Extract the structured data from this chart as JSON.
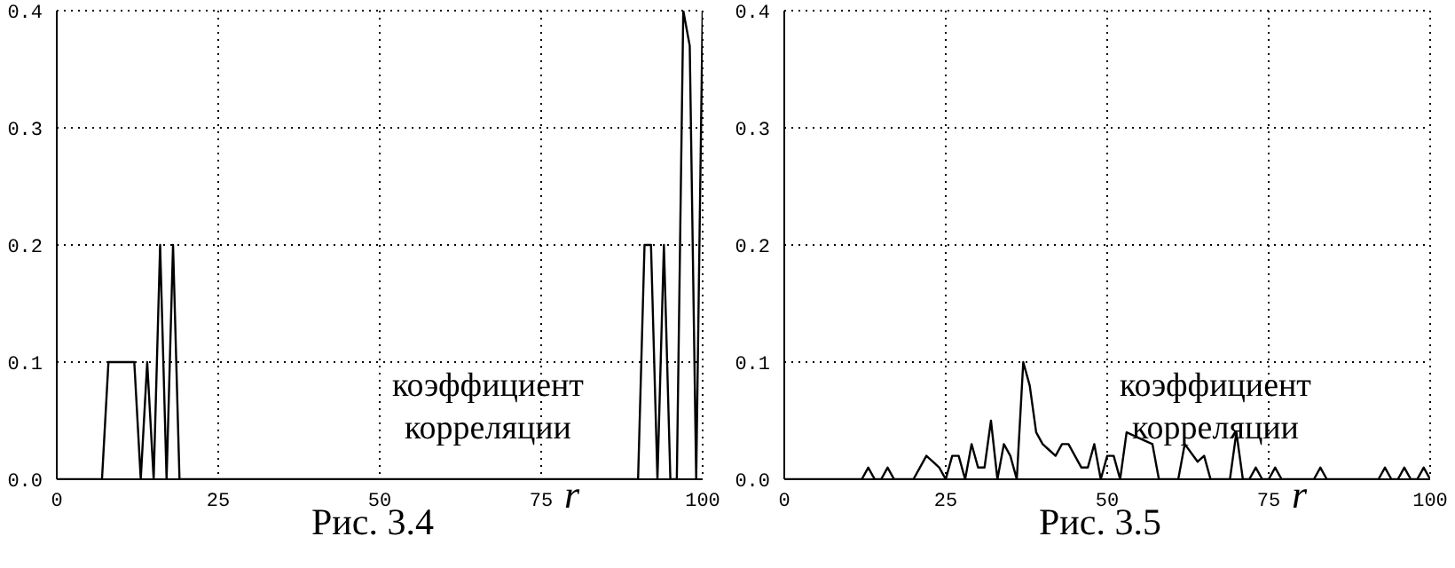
{
  "chart_data": [
    {
      "type": "line",
      "xlabel": "r",
      "annotations": [
        "коэффициент корреляции",
        "Рис. 3.4"
      ],
      "xlim": [
        0,
        100
      ],
      "xticks": [
        0,
        25,
        50,
        75,
        100
      ],
      "ylim": [
        0,
        0.4
      ],
      "yticks": [
        {
          "value": 0,
          "label": "0.0"
        },
        {
          "value": 0.1,
          "label": "0.1"
        },
        {
          "value": 0.2,
          "label": "0.2"
        },
        {
          "value": 0.3,
          "label": "0.3"
        },
        {
          "value": 0.4,
          "label": "0.4"
        }
      ],
      "grid": true,
      "legend": false,
      "marker": "none",
      "line_style": "solid",
      "series": [
        {
          "color": "#000000",
          "x": [
            0,
            7,
            8,
            12,
            13,
            14,
            15,
            16,
            17,
            18,
            19,
            90,
            91,
            92,
            93,
            94,
            95,
            96,
            97,
            98,
            99,
            100
          ],
          "values": [
            0,
            0,
            0.1,
            0.1,
            0,
            0.1,
            0,
            0.2,
            0,
            0.2,
            0,
            0,
            0.2,
            0.2,
            0,
            0.2,
            0,
            0,
            0.4,
            0.37,
            0,
            0.4
          ]
        }
      ]
    },
    {
      "type": "line",
      "xlabel": "r",
      "annotations": [
        "коэффициент корреляции",
        "Рис. 3.5"
      ],
      "xlim": [
        0,
        100
      ],
      "xticks": [
        0,
        25,
        50,
        75,
        100
      ],
      "ylim": [
        0,
        0.4
      ],
      "yticks": [
        {
          "value": 0,
          "label": "0.0"
        },
        {
          "value": 0.1,
          "label": "0.1"
        },
        {
          "value": 0.2,
          "label": "0.2"
        },
        {
          "value": 0.3,
          "label": "0.3"
        },
        {
          "value": 0.4,
          "label": "0.4"
        }
      ],
      "grid": true,
      "legend": false,
      "marker": "none",
      "line_style": "solid",
      "series": [
        {
          "color": "#000000",
          "x": [
            0,
            12,
            13,
            14,
            15,
            16,
            17,
            20,
            22,
            23,
            24,
            25,
            26,
            27,
            28,
            29,
            30,
            31,
            32,
            33,
            34,
            35,
            36,
            37,
            38,
            39,
            40,
            41,
            42,
            43,
            44,
            45,
            46,
            47,
            48,
            49,
            50,
            51,
            52,
            53,
            55,
            57,
            58,
            61,
            62,
            64,
            65,
            66,
            69,
            70,
            71,
            72,
            73,
            74,
            75,
            76,
            77,
            82,
            83,
            84,
            92,
            93,
            94,
            95,
            96,
            97,
            98,
            99,
            100
          ],
          "values": [
            0,
            0,
            0.01,
            0,
            0,
            0.01,
            0,
            0,
            0.02,
            0.015,
            0.01,
            0,
            0.02,
            0.02,
            0,
            0.03,
            0.01,
            0.01,
            0.05,
            0,
            0.03,
            0.02,
            0,
            0.1,
            0.08,
            0.04,
            0.03,
            0.025,
            0.02,
            0.03,
            0.03,
            0.02,
            0.01,
            0.01,
            0.03,
            0,
            0.02,
            0.02,
            0,
            0.04,
            0.035,
            0.03,
            0,
            0,
            0.03,
            0.015,
            0.02,
            0,
            0,
            0.04,
            0,
            0,
            0.01,
            0,
            0,
            0.01,
            0,
            0,
            0.01,
            0,
            0,
            0.01,
            0,
            0,
            0.01,
            0,
            0,
            0.01,
            0
          ]
        }
      ]
    }
  ]
}
